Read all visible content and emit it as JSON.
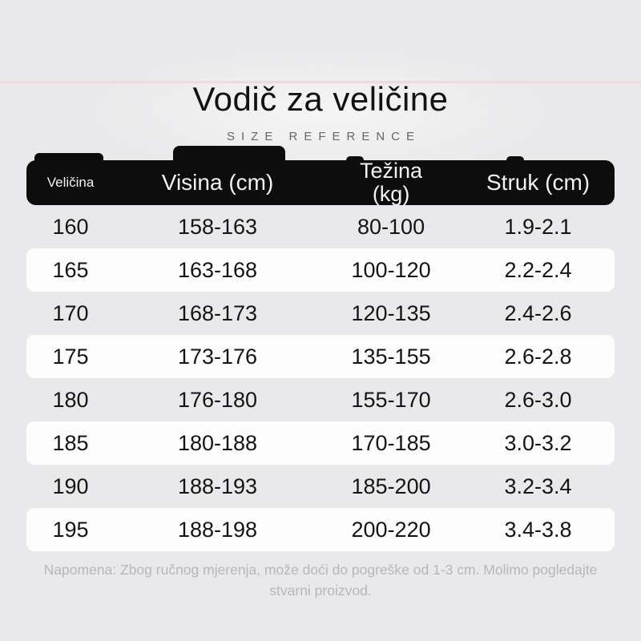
{
  "page": {
    "title": "Vodič za veličine",
    "subtitle": "SIZE REFERENCE",
    "note": "Napomena: Zbog ručnog mjerenja, može doći do pogreške od 1-3 cm. Molimo pogledajte stvarni proizvod."
  },
  "table": {
    "columns": [
      {
        "key": "size",
        "label": "Veličina"
      },
      {
        "key": "height",
        "label": "Visina (cm)"
      },
      {
        "key": "weight",
        "label": "Težina (kg)"
      },
      {
        "key": "waist",
        "label": "Struk (cm)"
      }
    ],
    "rows": [
      {
        "size": "160",
        "height": "158-163",
        "weight": "80-100",
        "waist": "1.9-2.1"
      },
      {
        "size": "165",
        "height": "163-168",
        "weight": "100-120",
        "waist": "2.2-2.4"
      },
      {
        "size": "170",
        "height": "168-173",
        "weight": "120-135",
        "waist": "2.4-2.6"
      },
      {
        "size": "175",
        "height": "173-176",
        "weight": "135-155",
        "waist": "2.6-2.8"
      },
      {
        "size": "180",
        "height": "176-180",
        "weight": "155-170",
        "waist": "2.6-3.0"
      },
      {
        "size": "185",
        "height": "180-188",
        "weight": "170-185",
        "waist": "3.0-3.2"
      },
      {
        "size": "190",
        "height": "188-193",
        "weight": "185-200",
        "waist": "3.2-3.4"
      },
      {
        "size": "195",
        "height": "188-198",
        "weight": "200-220",
        "waist": "3.4-3.8"
      }
    ]
  },
  "colors": {
    "background": "#e9e9eb",
    "top_accent": "#f2dada",
    "header_background": "#0d0d0d",
    "header_text": "#f2f2f2",
    "row_text": "#141414",
    "row_highlight": "#fdfdfd",
    "note_text": "#b7b7bb",
    "subtitle_text": "#666666",
    "title_text": "#121212"
  }
}
